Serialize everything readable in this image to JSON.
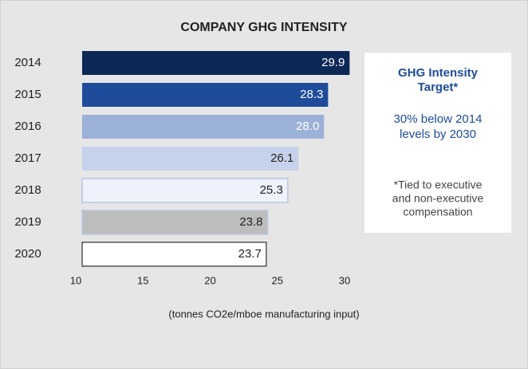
{
  "chart_data": {
    "type": "bar",
    "orientation": "horizontal",
    "title": "COMPANY GHG INTENSITY",
    "categories": [
      "2014",
      "2015",
      "2016",
      "2017",
      "2018",
      "2019",
      "2020"
    ],
    "values": [
      29.9,
      28.3,
      28.0,
      26.1,
      25.3,
      23.8,
      23.7
    ],
    "value_labels": [
      "29.9",
      "28.3",
      "28.0",
      "26.1",
      "25.3",
      "23.8",
      "23.7"
    ],
    "colors": [
      "#0c2856",
      "#1e4c9a",
      "#9cb1d8",
      "#c6d2eb",
      "#eef2fa",
      "#bdbdbd",
      "#ffffff"
    ],
    "label_colors": [
      "#ffffff",
      "#ffffff",
      "#ffffff",
      "#222222",
      "#222222",
      "#222222",
      "#222222"
    ],
    "xlim": [
      10,
      30
    ],
    "xticks": [
      10,
      15,
      20,
      25,
      30
    ],
    "xlabel": "(tonnes CO2e/mboe manufacturing input)",
    "annotation": {
      "heading": [
        "GHG Intensity",
        "Target*"
      ],
      "target": [
        "30% below 2014",
        "levels by 2030"
      ],
      "note": [
        "*Tied to executive",
        "and non-executive",
        "compensation"
      ]
    }
  }
}
